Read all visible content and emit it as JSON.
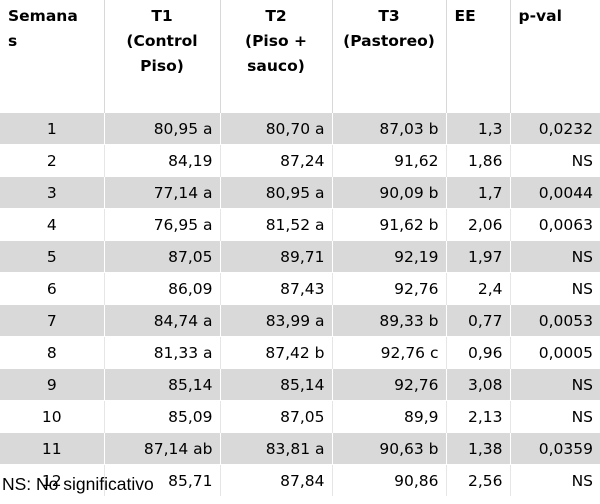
{
  "headers": [
    {
      "lines": [
        "Semana",
        "s"
      ],
      "align": "left"
    },
    {
      "lines": [
        "T1",
        "(Control",
        "Piso)"
      ],
      "align": "center"
    },
    {
      "lines": [
        "T2",
        "(Piso +",
        "sauco)"
      ],
      "align": "center"
    },
    {
      "lines": [
        "T3",
        "(Pastoreo)"
      ],
      "align": "center"
    },
    {
      "lines": [
        "EE"
      ],
      "align": "left"
    },
    {
      "lines": [
        "p-val"
      ],
      "align": "left"
    }
  ],
  "rows": [
    [
      "1",
      "80,95 a",
      "80,70 a",
      "87,03 b",
      "1,3",
      "0,0232"
    ],
    [
      "2",
      "84,19",
      "87,24",
      "91,62",
      "1,86",
      "NS"
    ],
    [
      "3",
      "77,14 a",
      "80,95 a",
      "90,09 b",
      "1,7",
      "0,0044"
    ],
    [
      "4",
      "76,95 a",
      "81,52 a",
      "91,62 b",
      "2,06",
      "0,0063"
    ],
    [
      "5",
      "87,05",
      "89,71",
      "92,19",
      "1,97",
      "NS"
    ],
    [
      "6",
      "86,09",
      "87,43",
      "92,76",
      "2,4",
      "NS"
    ],
    [
      "7",
      "84,74 a",
      "83,99 a",
      "89,33 b",
      "0,77",
      "0,0053"
    ],
    [
      "8",
      "81,33 a",
      "87,42 b",
      "92,76 c",
      "0,96",
      "0,0005"
    ],
    [
      "9",
      "85,14",
      "85,14",
      "92,76",
      "3,08",
      "NS"
    ],
    [
      "10",
      "85,09",
      "87,05",
      "89,9",
      "2,13",
      "NS"
    ],
    [
      "11",
      "87,14 ab",
      "83,81 a",
      "90,63 b",
      "1,38",
      "0,0359"
    ],
    [
      "12",
      "85,71",
      "87,84",
      "90,86",
      "2,56",
      "NS"
    ]
  ],
  "footnote": "NS: No significativo",
  "colors": {
    "shaded_row": "#d9d9d9",
    "plain_row": "#ffffff"
  }
}
